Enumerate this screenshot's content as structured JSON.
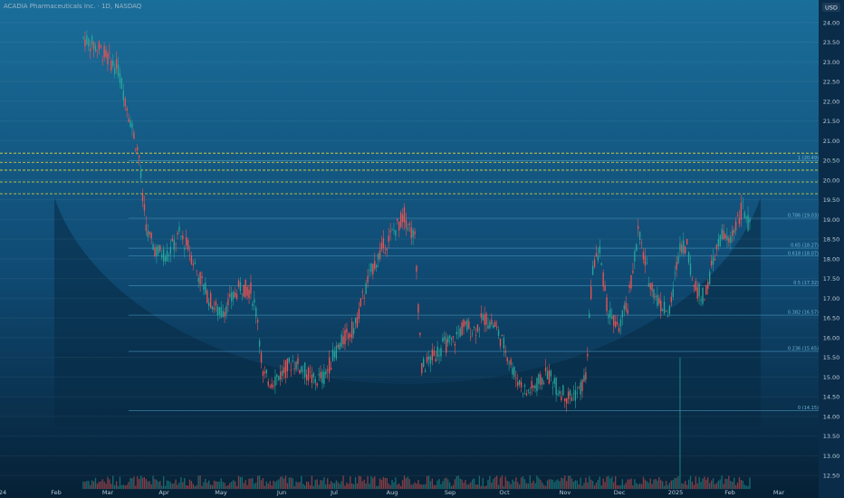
{
  "header": {
    "symbol_title": "ACADIA Pharmaceuticals Inc. · 1D, NASDAQ"
  },
  "axis": {
    "currency": "USD"
  },
  "chart_data": {
    "type": "candlestick",
    "title": "ACADIA Pharmaceuticals Inc. · 1D, NASDAQ",
    "y_unit": "USD",
    "ylim": [
      12.25,
      24.5
    ],
    "y_ticks": [
      "24.00",
      "23.50",
      "23.00",
      "22.50",
      "22.00",
      "21.50",
      "21.00",
      "20.50",
      "20.00",
      "19.50",
      "19.00",
      "18.50",
      "18.00",
      "17.50",
      "17.00",
      "16.50",
      "16.00",
      "15.50",
      "15.00",
      "14.50",
      "14.00",
      "13.50",
      "13.00",
      "12.50"
    ],
    "x_ticks": [
      "24",
      "Feb",
      "Mar",
      "Apr",
      "May",
      "Jun",
      "Jul",
      "Aug",
      "Sep",
      "Oct",
      "Nov",
      "Dec",
      "2025",
      "Feb",
      "Mar"
    ],
    "fib_levels": [
      {
        "ratio": "1",
        "value": 20.49,
        "label": "1 (20.49)"
      },
      {
        "ratio": "0.786",
        "value": 19.03,
        "label": "0.786 (19.03)"
      },
      {
        "ratio": "0.65",
        "value": 18.27,
        "label": "0.65 (18.27)"
      },
      {
        "ratio": "0.618",
        "value": 18.07,
        "label": "0.618 (18.07)"
      },
      {
        "ratio": "0.5",
        "value": 17.32,
        "label": "0.5 (17.32)"
      },
      {
        "ratio": "0.382",
        "value": 16.57,
        "label": "0.382 (16.57)"
      },
      {
        "ratio": "0.236",
        "value": 15.65,
        "label": "0.236 (15.65)"
      },
      {
        "ratio": "0",
        "value": 14.15,
        "label": "0 (14.15)"
      }
    ],
    "resistance_levels": [
      20.68,
      20.45,
      20.25,
      19.95,
      19.65
    ],
    "price_path": [
      [
        0,
        23.6
      ],
      [
        10,
        23.3
      ],
      [
        20,
        22.8
      ],
      [
        32,
        20.6
      ],
      [
        34,
        19.5
      ],
      [
        37,
        18.6
      ],
      [
        42,
        18.2
      ],
      [
        48,
        18.1
      ],
      [
        55,
        18.6
      ],
      [
        60,
        18.3
      ],
      [
        66,
        17.6
      ],
      [
        72,
        17.0
      ],
      [
        78,
        16.6
      ],
      [
        84,
        16.9
      ],
      [
        90,
        17.3
      ],
      [
        96,
        17.2
      ],
      [
        100,
        16.5
      ],
      [
        103,
        15.0
      ],
      [
        108,
        14.9
      ],
      [
        114,
        15.1
      ],
      [
        120,
        15.4
      ],
      [
        126,
        15.2
      ],
      [
        132,
        14.9
      ],
      [
        138,
        15.0
      ],
      [
        144,
        15.6
      ],
      [
        150,
        16.0
      ],
      [
        156,
        16.3
      ],
      [
        160,
        17.0
      ],
      [
        166,
        17.8
      ],
      [
        172,
        18.3
      ],
      [
        178,
        18.7
      ],
      [
        184,
        19.1
      ],
      [
        190,
        18.5
      ],
      [
        194,
        15.2
      ],
      [
        200,
        15.5
      ],
      [
        206,
        15.8
      ],
      [
        212,
        15.9
      ],
      [
        218,
        16.3
      ],
      [
        224,
        16.2
      ],
      [
        230,
        16.5
      ],
      [
        236,
        16.3
      ],
      [
        242,
        15.7
      ],
      [
        248,
        15.0
      ],
      [
        254,
        14.6
      ],
      [
        260,
        14.8
      ],
      [
        266,
        15.1
      ],
      [
        272,
        14.7
      ],
      [
        278,
        14.5
      ],
      [
        284,
        14.6
      ],
      [
        288,
        15.0
      ],
      [
        292,
        17.8
      ],
      [
        296,
        18.2
      ],
      [
        300,
        16.8
      ],
      [
        306,
        16.2
      ],
      [
        312,
        16.8
      ],
      [
        318,
        18.7
      ],
      [
        324,
        17.5
      ],
      [
        330,
        16.9
      ],
      [
        336,
        16.6
      ],
      [
        342,
        18.4
      ],
      [
        346,
        18.3
      ],
      [
        350,
        17.3
      ],
      [
        356,
        17.0
      ],
      [
        362,
        18.1
      ],
      [
        366,
        18.6
      ],
      [
        370,
        18.4
      ],
      [
        374,
        18.9
      ],
      [
        378,
        19.3
      ],
      [
        382,
        18.8
      ]
    ],
    "volume_spike_bar": 342
  }
}
